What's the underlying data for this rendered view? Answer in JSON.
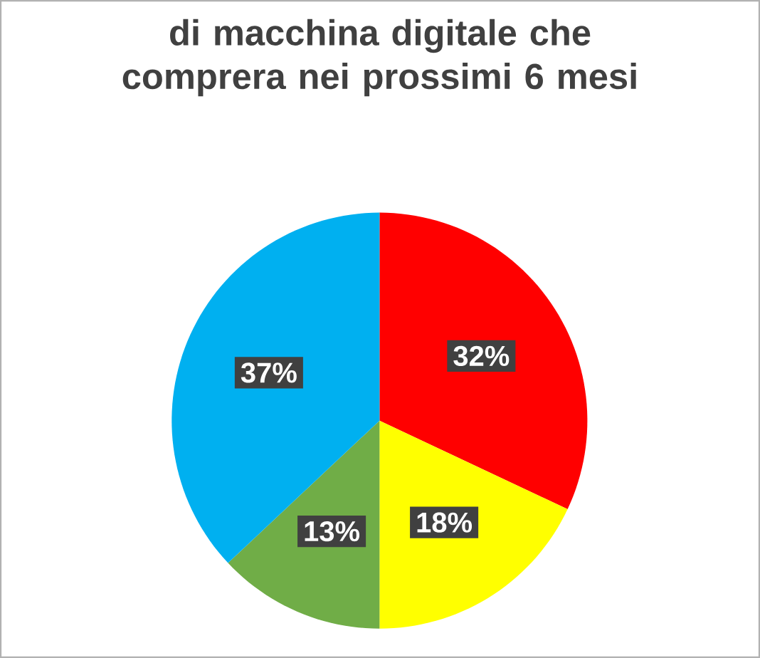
{
  "chart_data": {
    "type": "pie",
    "title": "di macchina digitale che comprera nei prossimi 6 mesi",
    "categories": [
      null,
      null,
      null,
      null
    ],
    "values": [
      32,
      18,
      13,
      37
    ],
    "colors": [
      "#ff0000",
      "#ffff00",
      "#70ad47",
      "#00b0f0"
    ],
    "value_labels": [
      "32%",
      "18%",
      "13%",
      "37%"
    ]
  }
}
